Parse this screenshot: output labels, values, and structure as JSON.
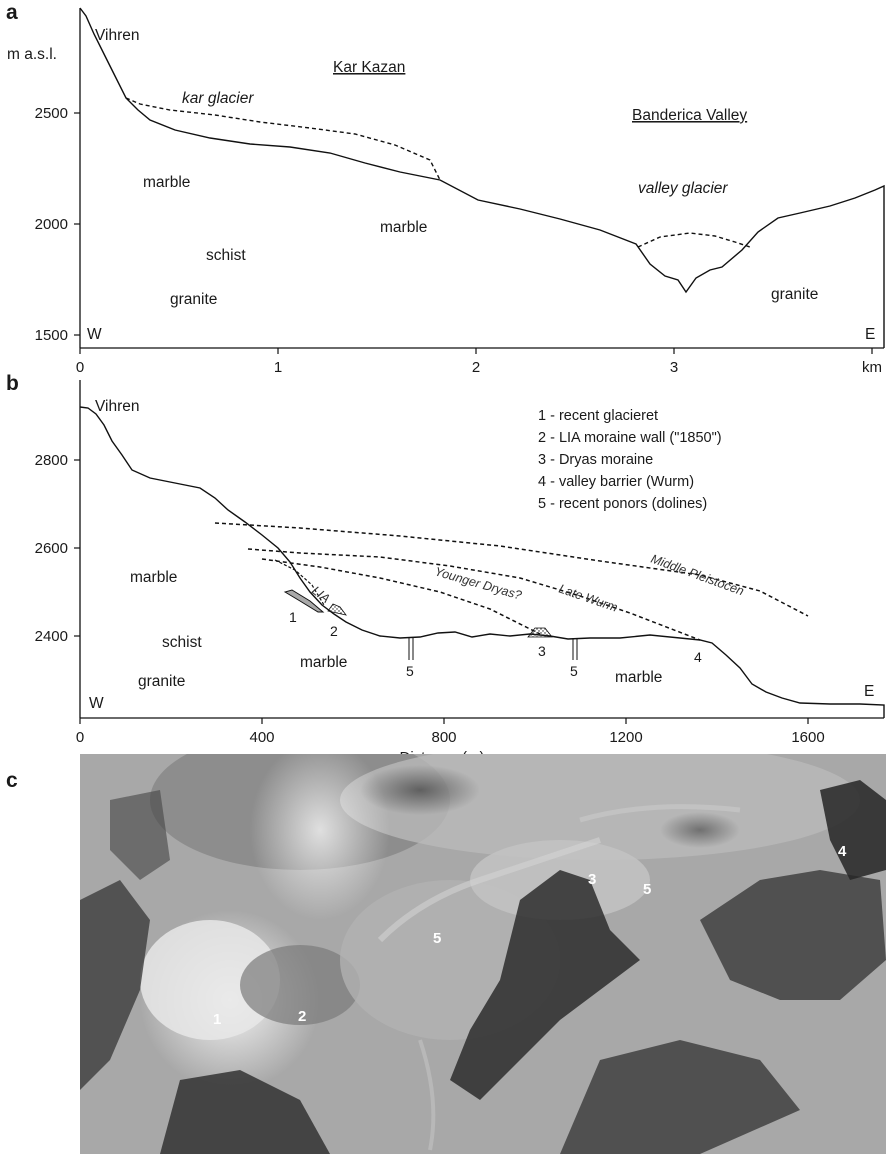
{
  "panel_a": {
    "letter": "a",
    "y_unit_label": "m a.s.l.",
    "peak_label": "Vihren",
    "place_labels": [
      "Kar Kazan",
      "Banderica Valley"
    ],
    "glacier_labels": [
      "kar glacier",
      "valley glacier"
    ],
    "rock_labels": [
      "marble",
      "schist",
      "granite",
      "marble",
      "granite"
    ],
    "direction_labels": [
      "W",
      "E"
    ],
    "y_ticks": [
      "2500",
      "2000",
      "1500"
    ],
    "x_ticks": [
      "0",
      "1",
      "2",
      "3",
      "km"
    ]
  },
  "panel_b": {
    "letter": "b",
    "peak_label": "Vihren",
    "legend": [
      "1 - recent glacieret",
      "2 - LIA moraine wall (\"1850\")",
      "3 - Dryas moraine",
      "4 - valley barrier (Wurm)",
      "5 - recent ponors (dolines)"
    ],
    "line_labels": [
      "LIA",
      "Younger Dryas?",
      "Late Wurm",
      "Middle Pleistocen"
    ],
    "feature_numbers": [
      "1",
      "2",
      "3",
      "4",
      "5",
      "5"
    ],
    "rock_labels": [
      "marble",
      "schist",
      "granite",
      "marble",
      "marble"
    ],
    "direction_labels": [
      "W",
      "E"
    ],
    "y_ticks": [
      "2800",
      "2600",
      "2400"
    ],
    "x_ticks": [
      "0",
      "400",
      "800",
      "1200",
      "1600"
    ],
    "x_axis_title": "Distance (m)"
  },
  "panel_c": {
    "letter": "c",
    "photo_numbers": [
      "1",
      "2",
      "3",
      "4",
      "5",
      "5"
    ]
  }
}
